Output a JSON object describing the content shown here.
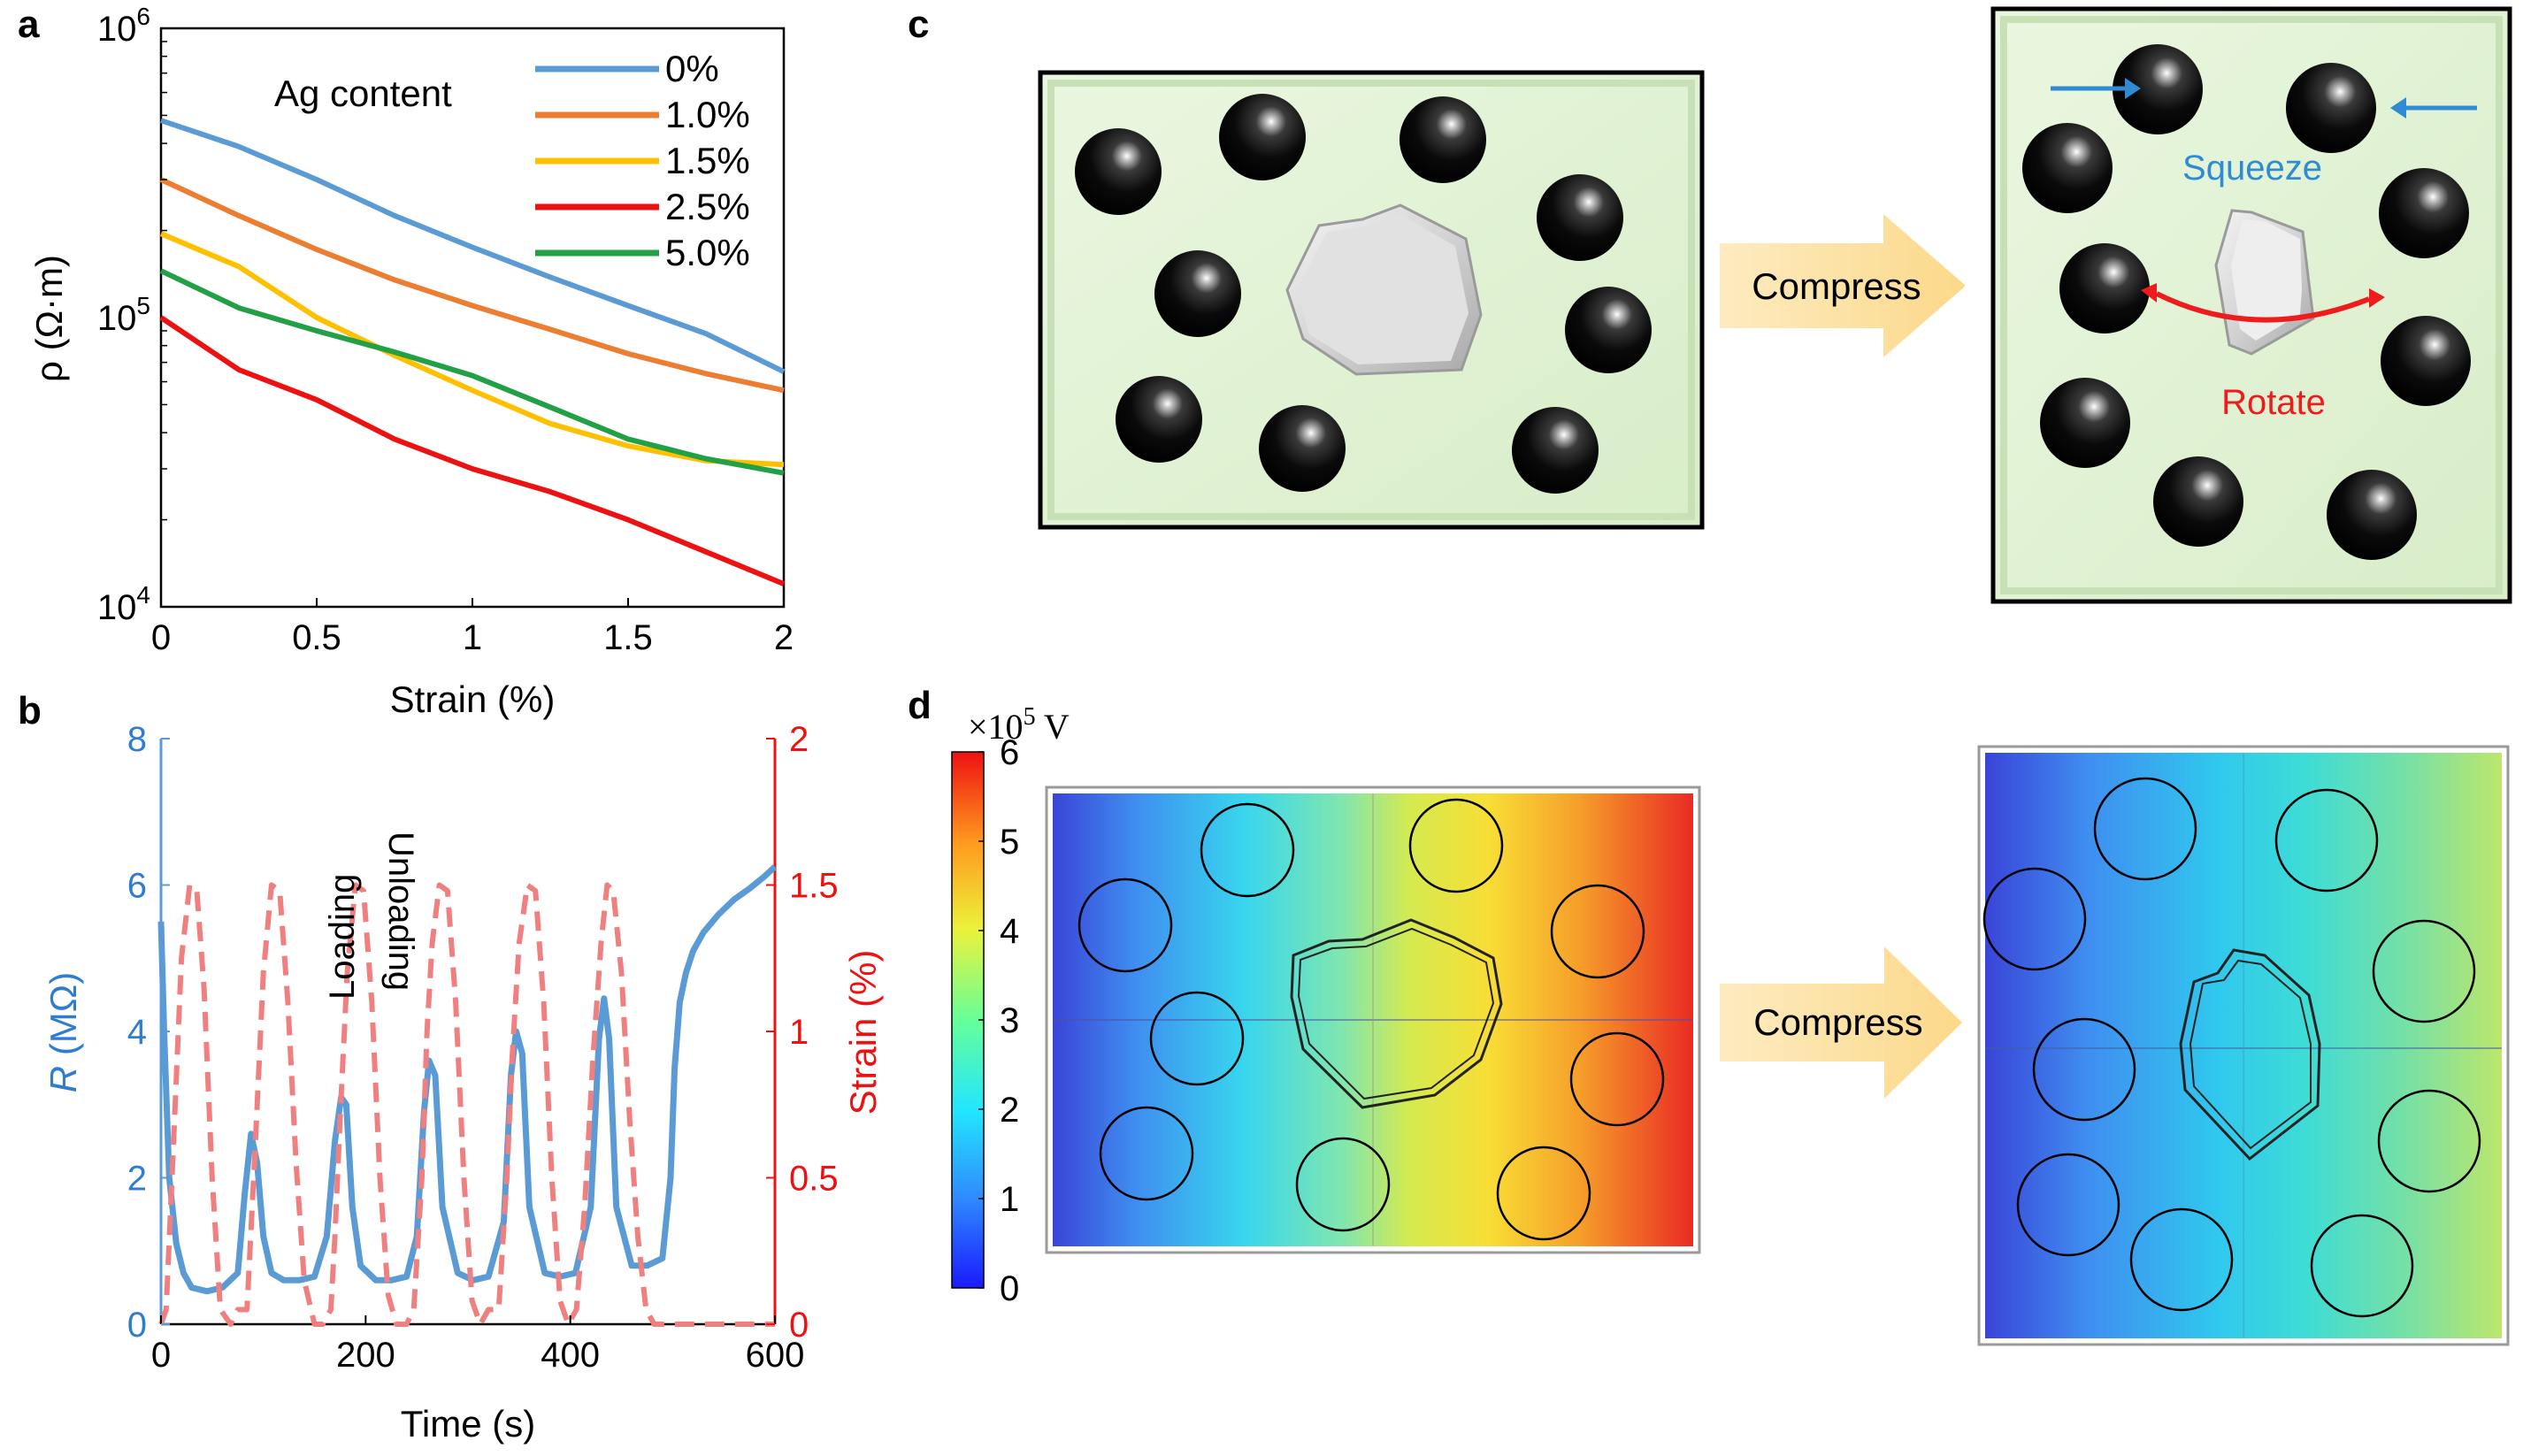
{
  "panels": {
    "a": "a",
    "b": "b",
    "c": "c",
    "d": "d"
  },
  "chart_data": [
    {
      "panel": "a",
      "type": "line",
      "yscale": "log",
      "xlabel": "Strain (%)",
      "ylabel": "ρ (Ω·m)",
      "xlim": [
        0,
        2
      ],
      "ylim": [
        10000,
        1000000
      ],
      "xticks": [
        "0",
        "0.5",
        "1",
        "1.5",
        "2"
      ],
      "xtick_values": [
        0,
        0.5,
        1,
        1.5,
        2
      ],
      "ytick_base": [
        "10",
        "10",
        "10"
      ],
      "ytick_exp": [
        "4",
        "5",
        "6"
      ],
      "ytick_values": [
        10000,
        100000,
        1000000
      ],
      "legend_title": "Ag content",
      "x": [
        0,
        0.25,
        0.5,
        0.75,
        1.0,
        1.25,
        1.5,
        1.75,
        2.0
      ],
      "series": [
        {
          "name": "0%",
          "color": "#5b9bd5",
          "values": [
            480000,
            390000,
            300000,
            225000,
            175000,
            138000,
            110000,
            88000,
            65000
          ]
        },
        {
          "name": "1.0%",
          "color": "#ed7d31",
          "values": [
            300000,
            225000,
            172000,
            135000,
            110000,
            91000,
            75000,
            64000,
            56000
          ]
        },
        {
          "name": "1.5%",
          "color": "#ffc000",
          "values": [
            195000,
            150000,
            100000,
            74000,
            56000,
            43000,
            36000,
            32000,
            31000
          ]
        },
        {
          "name": "2.5%",
          "color": "#ee1111",
          "values": [
            100000,
            66000,
            52000,
            38000,
            30000,
            25000,
            20000,
            15500,
            12000
          ]
        },
        {
          "name": "5.0%",
          "color": "#22a045",
          "values": [
            145000,
            108000,
            90000,
            76000,
            63000,
            49000,
            38000,
            32500,
            29000
          ]
        }
      ]
    },
    {
      "panel": "b",
      "type": "line",
      "xlabel": "Time (s)",
      "ylabel_left": "R (MΩ)",
      "ylabel_left_italic": "R",
      "ylabel_left_rest": " (MΩ)",
      "ylabel_right": "Strain (%)",
      "xlim": [
        0,
        600
      ],
      "ylim_left": [
        0,
        8
      ],
      "ylim_right": [
        0,
        2
      ],
      "xticks": [
        "0",
        "200",
        "400",
        "600"
      ],
      "xtick_values": [
        0,
        200,
        400,
        600
      ],
      "yticks_left": [
        "0",
        "2",
        "4",
        "6",
        "8"
      ],
      "ytick_left_values": [
        0,
        2,
        4,
        6,
        8
      ],
      "yticks_right": [
        "0",
        "0.5",
        "1",
        "1.5",
        "2"
      ],
      "ytick_right_values": [
        0,
        0.5,
        1,
        1.5,
        2
      ],
      "annotations": [
        "Loading",
        "Unloading"
      ],
      "series": [
        {
          "name": "R",
          "axis": "left",
          "color": "#5b9bd5",
          "x": [
            0,
            3,
            8,
            15,
            22,
            30,
            45,
            60,
            75,
            82,
            88,
            94,
            100,
            108,
            120,
            135,
            150,
            162,
            170,
            176,
            181,
            187,
            195,
            210,
            225,
            240,
            250,
            257,
            262,
            268,
            275,
            290,
            305,
            320,
            335,
            342,
            347,
            353,
            360,
            375,
            390,
            405,
            420,
            428,
            433,
            438,
            445,
            460,
            475,
            490,
            498,
            502,
            507,
            513,
            520,
            530,
            545,
            560,
            575,
            590,
            600
          ],
          "y": [
            5.5,
            4.0,
            2.0,
            1.1,
            0.7,
            0.5,
            0.45,
            0.5,
            0.7,
            1.8,
            2.6,
            2.2,
            1.2,
            0.7,
            0.6,
            0.6,
            0.65,
            1.2,
            2.5,
            3.1,
            3.0,
            1.6,
            0.8,
            0.6,
            0.6,
            0.65,
            1.2,
            2.9,
            3.6,
            3.4,
            1.6,
            0.7,
            0.6,
            0.65,
            1.4,
            3.4,
            4.0,
            3.7,
            1.6,
            0.7,
            0.65,
            0.7,
            1.6,
            3.9,
            4.45,
            3.9,
            1.6,
            0.8,
            0.8,
            0.9,
            2.0,
            3.5,
            4.4,
            4.8,
            5.1,
            5.35,
            5.6,
            5.8,
            5.95,
            6.12,
            6.25
          ]
        },
        {
          "name": "Strain",
          "axis": "right",
          "color": "#f08080",
          "x": [
            0,
            5,
            12,
            20,
            28,
            35,
            42,
            50,
            58,
            68,
            75,
            84,
            92,
            100,
            108,
            116,
            124,
            132,
            140,
            150,
            158,
            166,
            170,
            175,
            182,
            190,
            198,
            206,
            214,
            222,
            230,
            240,
            247,
            255,
            260,
            265,
            272,
            280,
            288,
            296,
            304,
            312,
            320,
            330,
            338,
            343,
            350,
            358,
            366,
            374,
            382,
            390,
            398,
            406,
            414,
            422,
            430,
            436,
            442,
            450,
            458,
            466,
            474,
            482,
            490,
            500,
            505,
            512,
            540,
            570,
            600
          ],
          "y": [
            0,
            0.05,
            0.6,
            1.25,
            1.5,
            1.48,
            1.15,
            0.5,
            0.05,
            0,
            0.05,
            0.05,
            0.6,
            1.2,
            1.5,
            1.48,
            1.1,
            0.55,
            0.15,
            0,
            0,
            0.05,
            0.3,
            0.7,
            1.2,
            1.5,
            1.48,
            1.1,
            0.5,
            0.1,
            0,
            0,
            0.05,
            0.5,
            1.0,
            1.3,
            1.5,
            1.48,
            1.1,
            0.5,
            0.08,
            0,
            0.05,
            0.05,
            0.5,
            0.9,
            1.3,
            1.5,
            1.48,
            1.1,
            0.5,
            0.08,
            0,
            0.05,
            0.4,
            0.9,
            1.3,
            1.5,
            1.48,
            1.2,
            0.7,
            0.3,
            0.05,
            0,
            0,
            0,
            0,
            0,
            0,
            0,
            0
          ]
        }
      ]
    },
    {
      "panel": "d",
      "type": "heatmap",
      "colorbar_unit_prefix": "×10",
      "colorbar_unit_exp": "5",
      "colorbar_unit_suffix": " V",
      "colorbar_ticks": [
        "0",
        "1",
        "2",
        "3",
        "4",
        "5",
        "6"
      ],
      "colorbar_tick_values": [
        0,
        1,
        2,
        3,
        4,
        5,
        6
      ],
      "colorbar_range": [
        0,
        6
      ]
    }
  ],
  "panel_c": {
    "arrow_label": "Compress",
    "squeeze_label": "Squeeze",
    "rotate_label": "Rotate"
  },
  "panel_d": {
    "arrow_label": "Compress"
  },
  "colors": {
    "matrix_fill": "#e2f2d6",
    "arrow_fill": "#fde3a7",
    "squeeze_color": "#2e8bd4",
    "rotate_color": "#ee1c1c"
  }
}
